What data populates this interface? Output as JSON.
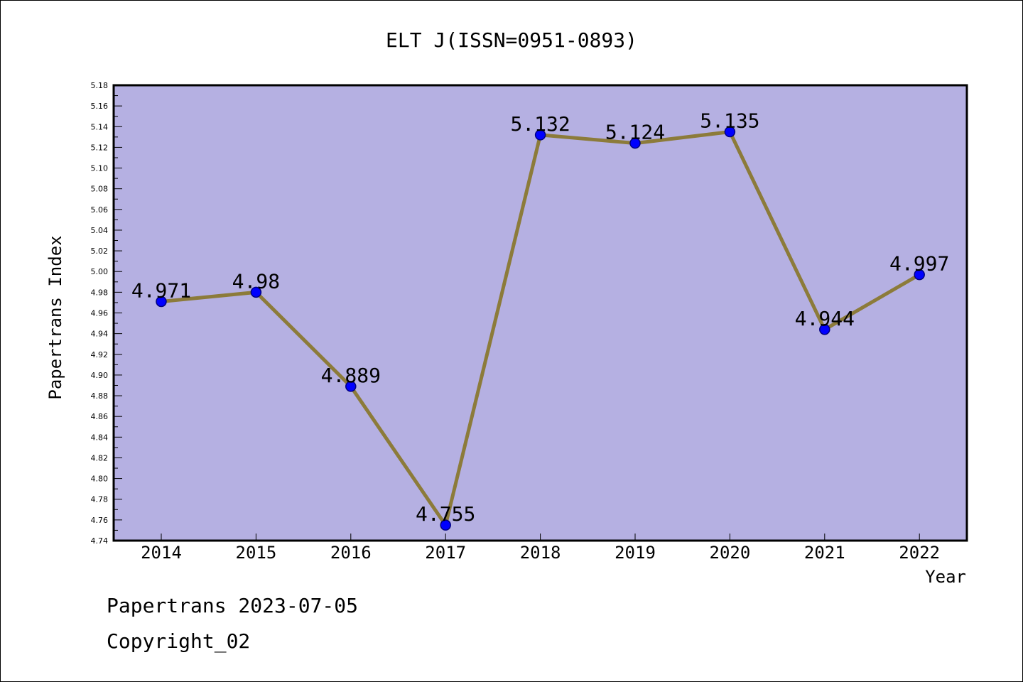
{
  "chart_data": {
    "type": "line",
    "title": "ELT J(ISSN=0951-0893)",
    "xlabel": "Year",
    "ylabel": "Papertrans Index",
    "categories": [
      "2014",
      "2015",
      "2016",
      "2017",
      "2018",
      "2019",
      "2020",
      "2021",
      "2022"
    ],
    "series": [
      {
        "values": [
          4.971,
          4.98,
          4.889,
          4.755,
          5.132,
          5.124,
          5.135,
          4.944,
          4.997
        ],
        "labels": [
          "4.971",
          "4.98",
          "4.889",
          "4.755",
          "5.132",
          "5.124",
          "5.135",
          "4.944",
          "4.997"
        ]
      }
    ],
    "ylim": [
      4.74,
      5.18
    ],
    "yticks": [
      "4.74",
      "4.76",
      "4.78",
      "4.80",
      "4.82",
      "4.84",
      "4.86",
      "4.88",
      "4.90",
      "4.92",
      "4.94",
      "4.96",
      "4.98",
      "5.00",
      "5.02",
      "5.04",
      "5.06",
      "5.08",
      "5.10",
      "5.12",
      "5.14",
      "5.16",
      "5.18"
    ],
    "grid": false,
    "colors": {
      "plot_background": "#b5b0e2",
      "line": "#8c7b3a",
      "marker": "#0000ff",
      "marker_edge": "#000080"
    }
  },
  "footer": {
    "line1": "Papertrans 2023-07-05",
    "line2": "Copyright_02"
  }
}
